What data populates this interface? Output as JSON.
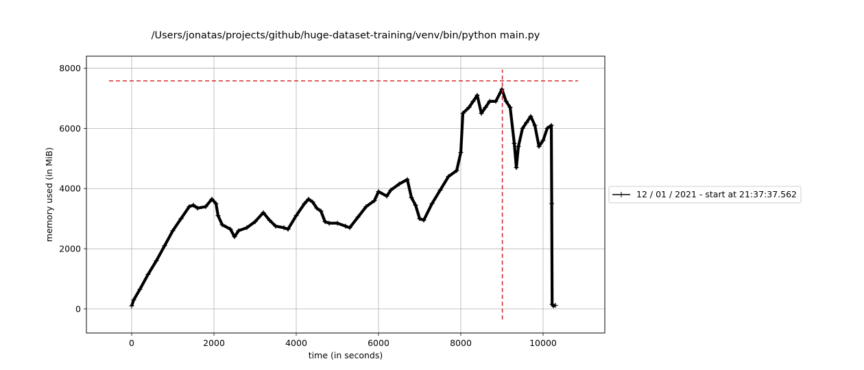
{
  "chart_data": {
    "type": "line",
    "title": "/Users/jonatas/projects/github/huge-dataset-training/venv/bin/python main.py",
    "xlabel": "time (in seconds)",
    "ylabel": "memory used (in MiB)",
    "xlim": [
      -1100,
      11500
    ],
    "ylim": [
      -800,
      8400
    ],
    "x_ticks": [
      {
        "value": 0,
        "label": "0"
      },
      {
        "value": 2000,
        "label": "2000"
      },
      {
        "value": 4000,
        "label": "4000"
      },
      {
        "value": 6000,
        "label": "6000"
      },
      {
        "value": 8000,
        "label": "8000"
      },
      {
        "value": 10000,
        "label": "10000"
      }
    ],
    "y_ticks": [
      {
        "value": 0,
        "label": "0"
      },
      {
        "value": 2000,
        "label": "2000"
      },
      {
        "value": 4000,
        "label": "4000"
      },
      {
        "value": 6000,
        "label": "6000"
      },
      {
        "value": 8000,
        "label": "8000"
      }
    ],
    "grid": true,
    "legend_position": "outside-right",
    "series": [
      {
        "name": "12 / 01 / 2021 - start at 21:37:37.562",
        "color": "#000000",
        "marker": "+",
        "x": [
          0,
          50,
          200,
          400,
          600,
          800,
          1000,
          1200,
          1400,
          1500,
          1600,
          1800,
          1950,
          2050,
          2100,
          2200,
          2400,
          2500,
          2600,
          2800,
          3000,
          3200,
          3350,
          3500,
          3700,
          3800,
          4000,
          4200,
          4300,
          4400,
          4500,
          4600,
          4700,
          4800,
          5000,
          5200,
          5300,
          5500,
          5700,
          5900,
          6000,
          6200,
          6300,
          6500,
          6700,
          6800,
          6900,
          7000,
          7100,
          7300,
          7500,
          7700,
          7900,
          8000,
          8050,
          8200,
          8300,
          8400,
          8500,
          8600,
          8700,
          8850,
          9000,
          9100,
          9200,
          9300,
          9350,
          9400,
          9500,
          9600,
          9700,
          9800,
          9900,
          10000,
          10100,
          10200,
          10210,
          10220,
          10250,
          10300
        ],
        "y": [
          100,
          300,
          650,
          1150,
          1600,
          2100,
          2600,
          3000,
          3400,
          3450,
          3350,
          3400,
          3650,
          3500,
          3100,
          2800,
          2650,
          2400,
          2600,
          2700,
          2900,
          3200,
          2950,
          2750,
          2700,
          2650,
          3100,
          3500,
          3650,
          3550,
          3350,
          3250,
          2900,
          2850,
          2850,
          2750,
          2700,
          3050,
          3400,
          3600,
          3900,
          3750,
          3950,
          4150,
          4300,
          3700,
          3450,
          3000,
          2950,
          3500,
          3950,
          4400,
          4600,
          5200,
          6500,
          6700,
          6900,
          7100,
          6500,
          6700,
          6900,
          6900,
          7300,
          6900,
          6700,
          5500,
          4700,
          5400,
          6000,
          6200,
          6400,
          6100,
          5400,
          5600,
          6000,
          6100,
          3500,
          150,
          100,
          120
        ]
      },
      {
        "name": "",
        "color": "#d62728",
        "style": "dashed",
        "orientation": "horizontal",
        "y": 7580,
        "x_range": [
          -550,
          10850
        ]
      },
      {
        "name": "",
        "color": "#d62728",
        "style": "dashed",
        "orientation": "vertical",
        "x": 9010,
        "y_range": [
          -350,
          7950
        ]
      }
    ]
  }
}
